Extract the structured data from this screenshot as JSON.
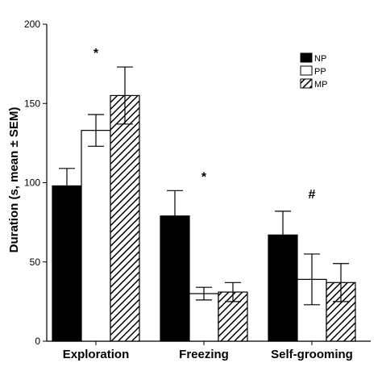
{
  "chart_data": {
    "type": "bar",
    "title": "",
    "xlabel": "",
    "ylabel": "Duration (s, mean ± SEM)",
    "ylim": [
      0,
      200
    ],
    "yticks": [
      0,
      50,
      100,
      150,
      200
    ],
    "ytick_labels": [
      "0",
      "50",
      "100",
      "150",
      "200"
    ],
    "grid": false,
    "legend_position": "top-right",
    "categories": [
      "Exploration",
      "Freezing",
      "Self-grooming"
    ],
    "series": [
      {
        "name": "NP",
        "fill": "solid-black",
        "values": [
          98,
          79,
          67
        ],
        "errors": [
          11,
          16,
          15
        ]
      },
      {
        "name": "PP",
        "fill": "white",
        "values": [
          133,
          30,
          39
        ],
        "errors": [
          10,
          4,
          16
        ]
      },
      {
        "name": "MP",
        "fill": "diagonal-hatch",
        "values": [
          155,
          31,
          37
        ],
        "errors": [
          18,
          6,
          12
        ]
      }
    ],
    "annotations": [
      {
        "category": "Exploration",
        "text": "*"
      },
      {
        "category": "Freezing",
        "text": "*"
      },
      {
        "category": "Self-grooming",
        "text": "#"
      }
    ]
  },
  "colors": {
    "black": "#000000",
    "white": "#ffffff"
  }
}
